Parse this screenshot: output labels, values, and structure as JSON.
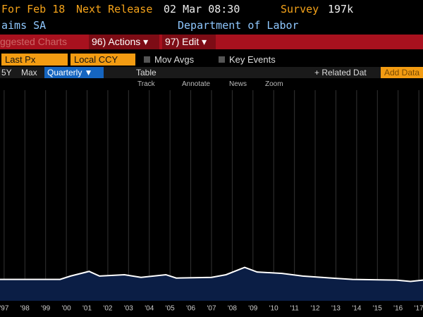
{
  "header": {
    "as_of": "For Feb 18",
    "next_release_label": "Next Release",
    "next_release": "02 Mar 08:30",
    "survey_label": "Survey",
    "survey": "197k",
    "series_title": "aims SA",
    "source": "Department of Labor"
  },
  "menu": {
    "suggested": "ggested Charts",
    "actions": "96) Actions ▾",
    "edit": "97) Edit ▾"
  },
  "controls": {
    "field": "Last Px",
    "currency": "Local CCY",
    "mov_avgs": "Mov Avgs",
    "key_events": "Key Events"
  },
  "toolbar": {
    "range_5y": "5Y",
    "range_max": "Max",
    "frequency": "Quarterly ▼",
    "table": "Table",
    "related": "+ Related Dat",
    "add_data": "Add Data"
  },
  "tools": {
    "track": "Track",
    "annotate": "Annotate",
    "news": "News",
    "zoom": "Zoom"
  },
  "chart_data": {
    "type": "area",
    "line_color": "#ffffff",
    "fill_color": "#0b1e45",
    "grid": true,
    "x": [
      1996.8,
      1999.7,
      2000.2,
      2001.1,
      2001.6,
      2002.8,
      2003.6,
      2004.8,
      2005.3,
      2007.0,
      2007.7,
      2008.6,
      2009.2,
      2010.4,
      2011.4,
      2012.8,
      2013.8,
      2015.9,
      2016.6,
      2017.2
    ],
    "values": [
      320,
      320,
      420,
      560,
      420,
      460,
      380,
      460,
      360,
      380,
      460,
      680,
      540,
      500,
      420,
      360,
      320,
      300,
      260,
      300
    ],
    "xlim": [
      1996.8,
      2017.2
    ],
    "ylim": [
      -320,
      5980
    ],
    "xticks": [
      {
        "value": 1997,
        "label": "'97"
      },
      {
        "value": 1998,
        "label": "'98"
      },
      {
        "value": 1999,
        "label": "'99"
      },
      {
        "value": 2000,
        "label": "'00"
      },
      {
        "value": 2001,
        "label": "'01"
      },
      {
        "value": 2002,
        "label": "'02"
      },
      {
        "value": 2003,
        "label": "'03"
      },
      {
        "value": 2004,
        "label": "'04"
      },
      {
        "value": 2005,
        "label": "'05"
      },
      {
        "value": 2006,
        "label": "'06"
      },
      {
        "value": 2007,
        "label": "'07"
      },
      {
        "value": 2008,
        "label": "'08"
      },
      {
        "value": 2009,
        "label": "'09"
      },
      {
        "value": 2010,
        "label": "'10"
      },
      {
        "value": 2011,
        "label": "'11"
      },
      {
        "value": 2012,
        "label": "'12"
      },
      {
        "value": 2013,
        "label": "'13"
      },
      {
        "value": 2014,
        "label": "'14"
      },
      {
        "value": 2015,
        "label": "'15"
      },
      {
        "value": 2016,
        "label": "'16"
      },
      {
        "value": 2017,
        "label": "'17"
      }
    ]
  }
}
